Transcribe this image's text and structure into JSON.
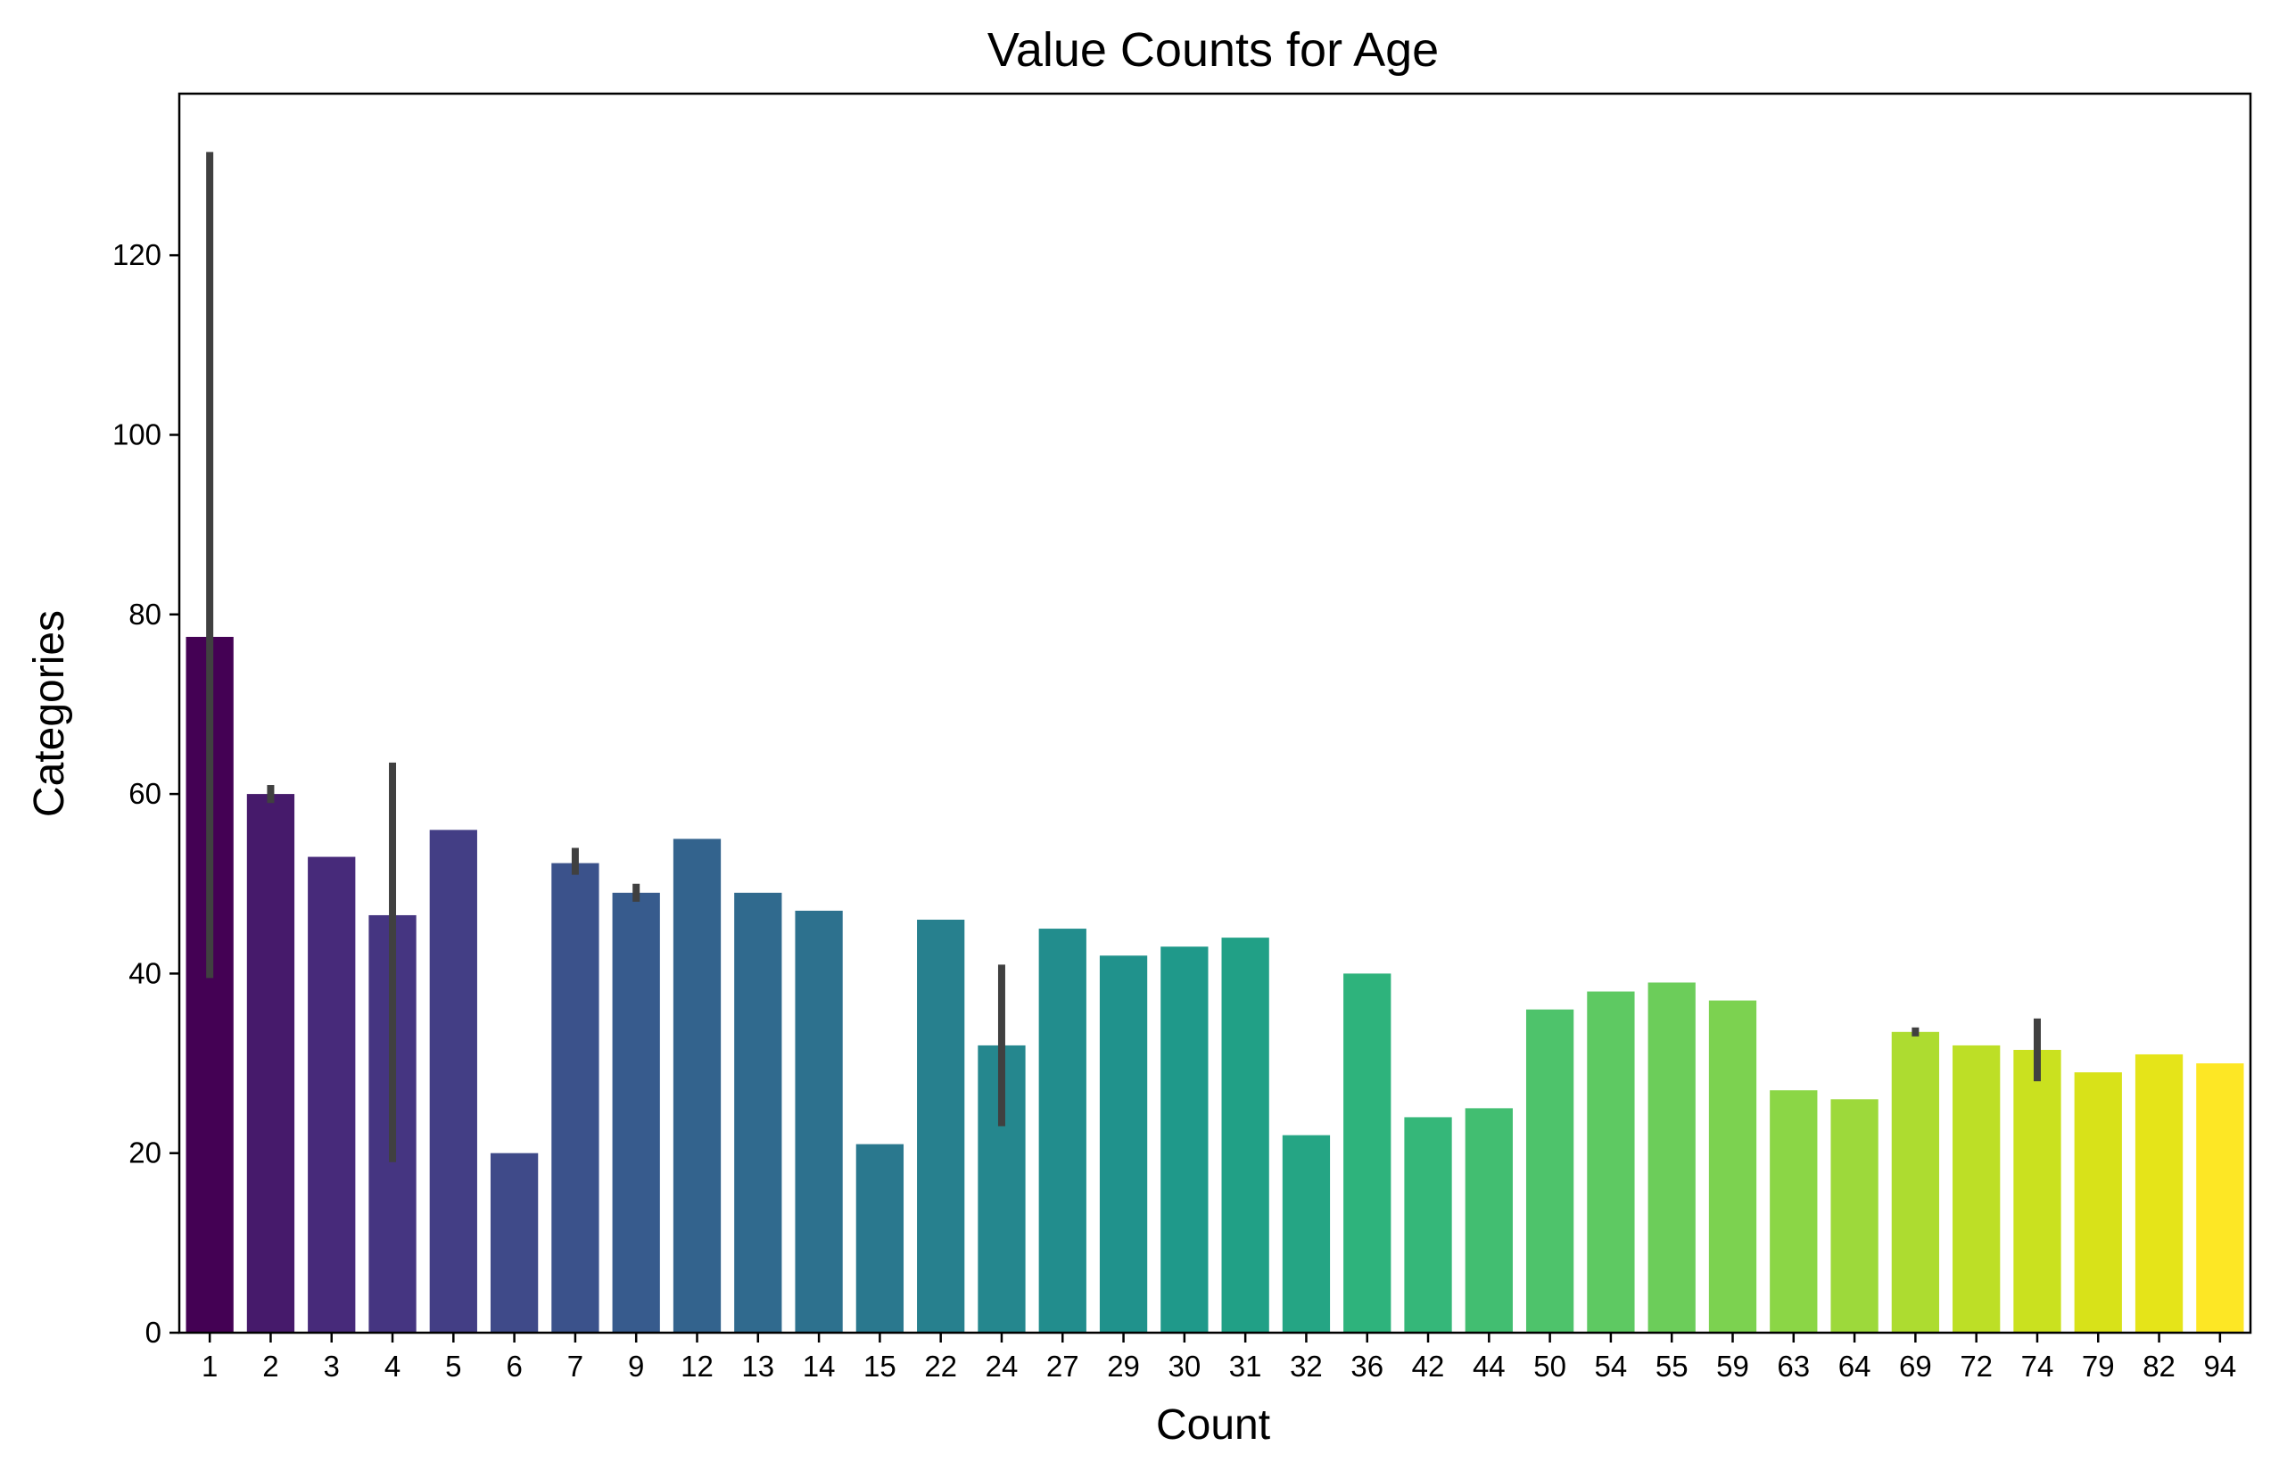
{
  "chart_data": {
    "type": "bar",
    "title": "Value Counts for Age",
    "xlabel": "Count",
    "ylabel": "Categories",
    "ylim": [
      0,
      138
    ],
    "yticks": [
      0,
      20,
      40,
      60,
      80,
      100,
      120
    ],
    "grid": false,
    "legend": "none",
    "palette": "viridis",
    "categories": [
      "1",
      "2",
      "3",
      "4",
      "5",
      "6",
      "7",
      "9",
      "12",
      "13",
      "14",
      "15",
      "22",
      "24",
      "27",
      "29",
      "30",
      "31",
      "32",
      "36",
      "42",
      "44",
      "50",
      "54",
      "55",
      "59",
      "63",
      "64",
      "69",
      "72",
      "74",
      "79",
      "82",
      "94"
    ],
    "values": [
      77.5,
      60,
      53,
      46.5,
      56,
      20,
      52.3,
      49,
      55,
      49,
      47,
      21,
      46,
      32,
      45,
      42,
      43,
      44,
      22,
      40,
      24,
      25,
      36,
      38,
      39,
      37,
      27,
      26,
      33.5,
      32,
      31.5,
      29,
      31,
      30
    ],
    "error_bars": [
      {
        "category": "1",
        "low": 39.5,
        "high": 131.5
      },
      {
        "category": "2",
        "low": 59,
        "high": 61
      },
      {
        "category": "4",
        "low": 19,
        "high": 63.5
      },
      {
        "category": "7",
        "low": 51,
        "high": 54
      },
      {
        "category": "9",
        "low": 48,
        "high": 50
      },
      {
        "category": "24",
        "low": 23,
        "high": 41
      },
      {
        "category": "69",
        "low": 33,
        "high": 34
      },
      {
        "category": "74",
        "low": 28,
        "high": 35
      }
    ],
    "error_color": "#404040",
    "colors": [
      "#440154",
      "#461a6b",
      "#472a7a",
      "#453581",
      "#433e85",
      "#3f4a89",
      "#3b528b",
      "#375b8d",
      "#33638d",
      "#306a8e",
      "#2d718e",
      "#2a788e",
      "#27808e",
      "#25878e",
      "#228d8d",
      "#20928c",
      "#1f998a",
      "#21a086",
      "#25a584",
      "#2eb37c",
      "#35b779",
      "#42be71",
      "#4ec36b",
      "#5ec962",
      "#6ccd5a",
      "#7cd250",
      "#8bd646",
      "#9dd93b",
      "#addc30",
      "#bddf26",
      "#cae11f",
      "#d8e219",
      "#e5e419",
      "#fde725"
    ]
  }
}
